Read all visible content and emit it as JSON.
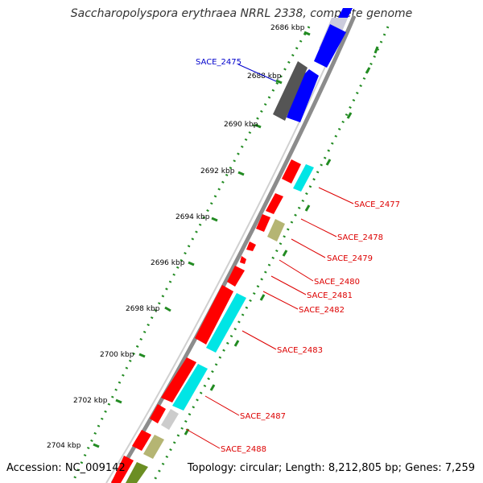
{
  "title": "Saccharopolyspora erythraea NRRL 2338, complete genome",
  "accession": "Accession: NC_009142",
  "topology": "Topology: circular; Length: 8,212,805 bp; Genes: 7,259",
  "colors": {
    "backbone": "#8c8c8c",
    "tick": "#228b22",
    "label_highlight": "#0000cc",
    "label_default": "#dd0000",
    "gene_red": "#ff0000",
    "gene_blue": "#0000ff",
    "gene_cyan": "#00e5e5",
    "gene_gray": "#555555",
    "gene_olive": "#b5b573",
    "gene_lightgray": "#cccccc",
    "gene_green": "#6b8e23"
  },
  "kbp_labels": [
    "2686 kbp",
    "2688 kbp",
    "2690 kbp",
    "2692 kbp",
    "2694 kbp",
    "2696 kbp",
    "2698 kbp",
    "2700 kbp",
    "2702 kbp",
    "2704 kbp"
  ],
  "gene_labels": [
    {
      "name": "SACE_2475",
      "highlight": true
    },
    {
      "name": "SACE_2477",
      "highlight": false
    },
    {
      "name": "SACE_2478",
      "highlight": false
    },
    {
      "name": "SACE_2479",
      "highlight": false
    },
    {
      "name": "SACE_2480",
      "highlight": false
    },
    {
      "name": "SACE_2481",
      "highlight": false
    },
    {
      "name": "SACE_2482",
      "highlight": false
    },
    {
      "name": "SACE_2483",
      "highlight": false
    },
    {
      "name": "SACE_2487",
      "highlight": false
    },
    {
      "name": "SACE_2488",
      "highlight": false
    }
  ]
}
